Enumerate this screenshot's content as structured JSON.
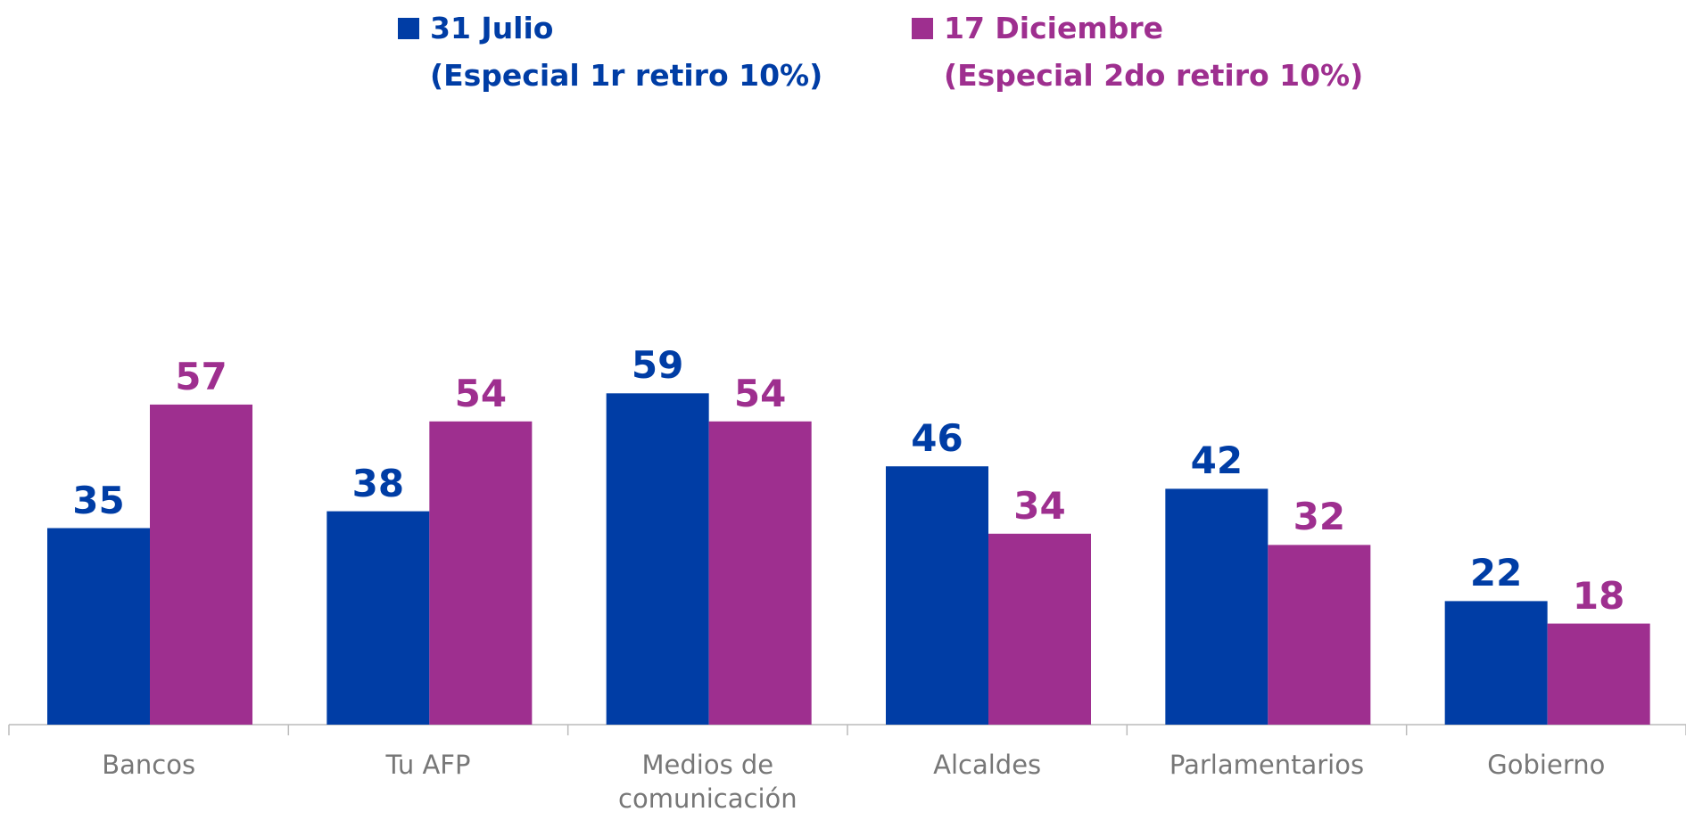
{
  "chart_data": {
    "type": "bar",
    "categories": [
      "Bancos",
      "Tu AFP",
      "Medios de comunicación",
      "Alcaldes",
      "Parlamentarios",
      "Gobierno"
    ],
    "series": [
      {
        "name": "31 Julio\n(Especial 1r retiro 10%)",
        "color": "#003da5",
        "values": [
          35,
          38,
          59,
          46,
          42,
          22
        ]
      },
      {
        "name": "17 Diciembre\n(Especial 2do retiro 10%)",
        "color": "#9e2f8f",
        "values": [
          57,
          54,
          54,
          34,
          32,
          18
        ]
      }
    ]
  }
}
